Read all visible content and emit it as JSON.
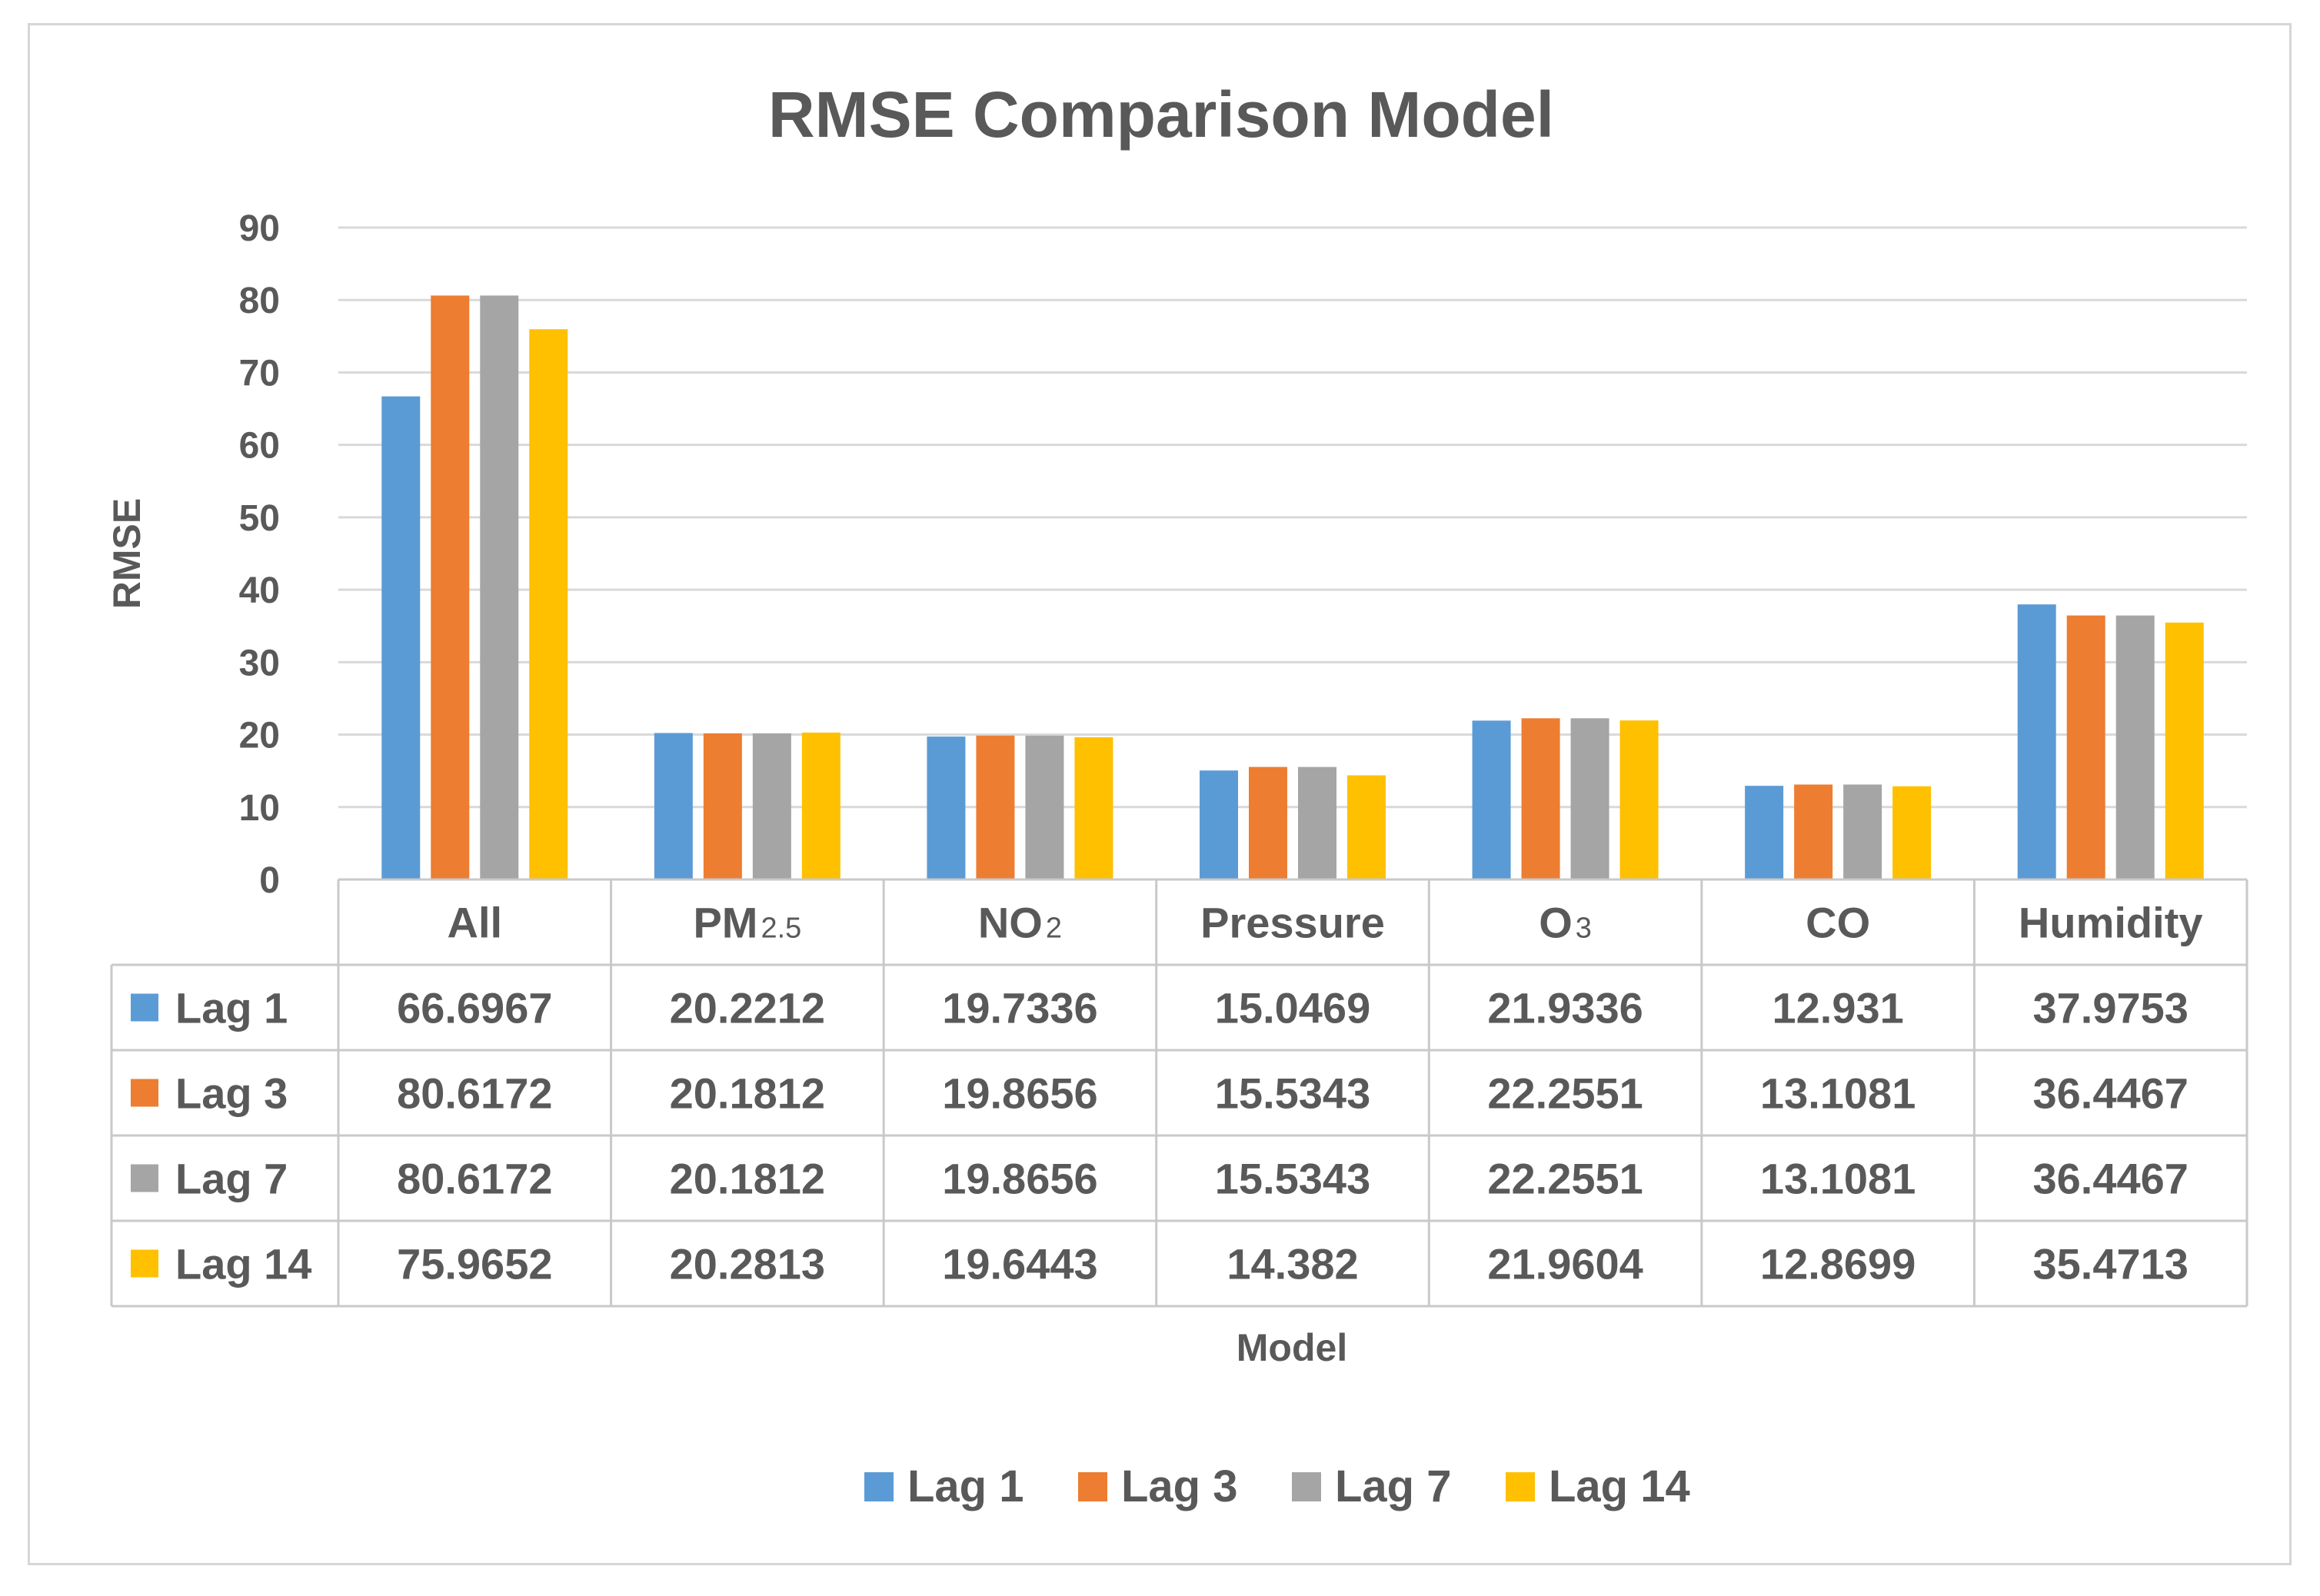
{
  "chart_data": {
    "type": "bar",
    "title": "RMSE Comparison Model",
    "xlabel": "Model",
    "ylabel": "RMSE",
    "ylim": [
      0,
      90
    ],
    "yticks": [
      0,
      10,
      20,
      30,
      40,
      50,
      60,
      70,
      80,
      90
    ],
    "grid": true,
    "legend_position": "bottom",
    "data_table": true,
    "categories": [
      {
        "label": "All",
        "base": "All",
        "sub": ""
      },
      {
        "label": "PM2.5",
        "base": "PM",
        "sub": "2.5"
      },
      {
        "label": "NO2",
        "base": "NO",
        "sub": "2"
      },
      {
        "label": "Pressure",
        "base": "Pressure",
        "sub": ""
      },
      {
        "label": "O3",
        "base": "O",
        "sub": "3"
      },
      {
        "label": "CO",
        "base": "CO",
        "sub": ""
      },
      {
        "label": "Humidity",
        "base": "Humidity",
        "sub": ""
      }
    ],
    "series": [
      {
        "name": "Lag 1",
        "color": "#5b9bd5",
        "values": [
          66.6967,
          20.2212,
          19.7336,
          15.0469,
          21.9336,
          12.931,
          37.9753
        ],
        "labels": [
          "66.6967",
          "20.2212",
          "19.7336",
          "15.0469",
          "21.9336",
          "12.931",
          "37.9753"
        ]
      },
      {
        "name": "Lag 3",
        "color": "#ed7d31",
        "values": [
          80.6172,
          20.1812,
          19.8656,
          15.5343,
          22.2551,
          13.1081,
          36.4467
        ],
        "labels": [
          "80.6172",
          "20.1812",
          "19.8656",
          "15.5343",
          "22.2551",
          "13.1081",
          "36.4467"
        ]
      },
      {
        "name": "Lag 7",
        "color": "#a5a5a5",
        "values": [
          80.6172,
          20.1812,
          19.8656,
          15.5343,
          22.2551,
          13.1081,
          36.4467
        ],
        "labels": [
          "80.6172",
          "20.1812",
          "19.8656",
          "15.5343",
          "22.2551",
          "13.1081",
          "36.4467"
        ]
      },
      {
        "name": "Lag 14",
        "color": "#ffc000",
        "values": [
          75.9652,
          20.2813,
          19.6443,
          14.382,
          21.9604,
          12.8699,
          35.4713
        ],
        "labels": [
          "75.9652",
          "20.2813",
          "19.6443",
          "14.382",
          "21.9604",
          "12.8699",
          "35.4713"
        ]
      }
    ]
  }
}
